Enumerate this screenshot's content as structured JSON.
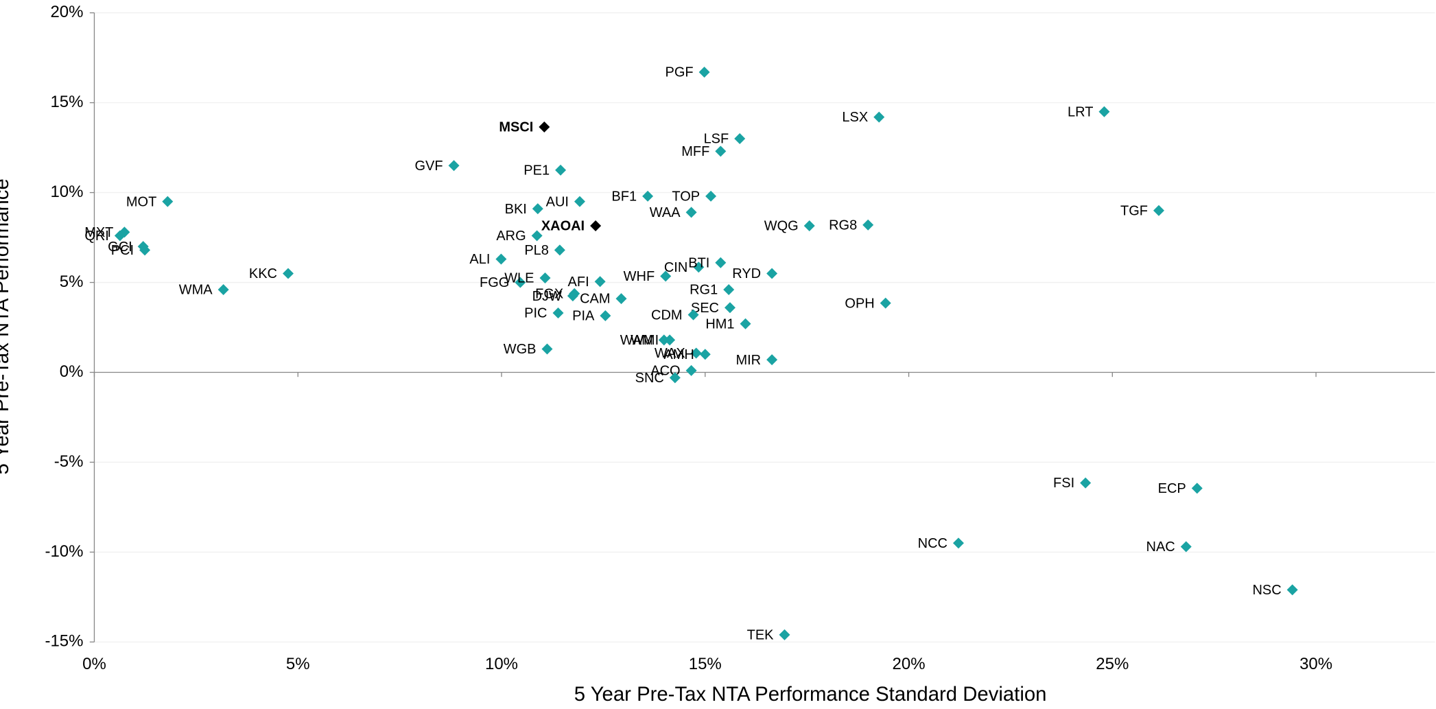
{
  "chart_data": {
    "type": "scatter",
    "x_label": "5 Year Pre-Tax NTA Performance Standard Deviation",
    "y_label": "5 Year Pre-Tax NTA Performance",
    "xlim": [
      0,
      33
    ],
    "ylim": [
      -15,
      20
    ],
    "xticks": [
      {
        "value": 0,
        "label": "0%"
      },
      {
        "value": 5,
        "label": "5%"
      },
      {
        "value": 10,
        "label": "10%"
      },
      {
        "value": 15,
        "label": "15%"
      },
      {
        "value": 20,
        "label": "20%"
      },
      {
        "value": 25,
        "label": "25%"
      },
      {
        "value": 30,
        "label": "30%"
      }
    ],
    "yticks": [
      {
        "value": -15,
        "label": "-15%"
      },
      {
        "value": -10,
        "label": "-10%"
      },
      {
        "value": -5,
        "label": "-5%"
      },
      {
        "value": 0,
        "label": "0%"
      },
      {
        "value": 5,
        "label": "5%"
      },
      {
        "value": 10,
        "label": "10%"
      },
      {
        "value": 15,
        "label": "15%"
      },
      {
        "value": 20,
        "label": "20%"
      }
    ],
    "grid": true,
    "color": "#1aa3a3",
    "index_color": "#000000",
    "points": [
      {
        "label": "PGF",
        "x": 14.98,
        "y": 16.7
      },
      {
        "label": "LSX",
        "x": 19.27,
        "y": 14.2
      },
      {
        "label": "LRT",
        "x": 24.8,
        "y": 14.5
      },
      {
        "label": "LSF",
        "x": 15.85,
        "y": 13.0
      },
      {
        "label": "MFF",
        "x": 15.38,
        "y": 12.3
      },
      {
        "label": "GVF",
        "x": 8.83,
        "y": 11.5
      },
      {
        "label": "PE1",
        "x": 11.45,
        "y": 11.25
      },
      {
        "label": "MOT",
        "x": 1.8,
        "y": 9.5
      },
      {
        "label": "BKI",
        "x": 10.89,
        "y": 9.1
      },
      {
        "label": "AUI",
        "x": 11.92,
        "y": 9.5
      },
      {
        "label": "BF1",
        "x": 13.59,
        "y": 9.8
      },
      {
        "label": "TOP",
        "x": 15.14,
        "y": 9.8
      },
      {
        "label": "WAA",
        "x": 14.66,
        "y": 8.9
      },
      {
        "label": "TGF",
        "x": 26.14,
        "y": 9.0
      },
      {
        "label": "WQG",
        "x": 17.56,
        "y": 8.15
      },
      {
        "label": "RG8",
        "x": 19.0,
        "y": 8.2
      },
      {
        "label": "QRI",
        "x": 0.63,
        "y": 7.6
      },
      {
        "label": "MXT",
        "x": 0.74,
        "y": 7.8
      },
      {
        "label": "GCI",
        "x": 1.2,
        "y": 7.0
      },
      {
        "label": "PCI",
        "x": 1.24,
        "y": 6.8
      },
      {
        "label": "ARG",
        "x": 10.87,
        "y": 7.6
      },
      {
        "label": "PL8",
        "x": 11.43,
        "y": 6.8
      },
      {
        "label": "ALI",
        "x": 9.99,
        "y": 6.3
      },
      {
        "label": "KKC",
        "x": 4.76,
        "y": 5.5
      },
      {
        "label": "CIN",
        "x": 14.84,
        "y": 5.85
      },
      {
        "label": "BTI",
        "x": 15.38,
        "y": 6.1
      },
      {
        "label": "WHF",
        "x": 14.03,
        "y": 5.35
      },
      {
        "label": "RYD",
        "x": 16.64,
        "y": 5.5
      },
      {
        "label": "FGG",
        "x": 10.46,
        "y": 5.0
      },
      {
        "label": "WLE",
        "x": 11.07,
        "y": 5.25
      },
      {
        "label": "AFI",
        "x": 12.42,
        "y": 5.05
      },
      {
        "label": "WMA",
        "x": 3.17,
        "y": 4.6
      },
      {
        "label": "RG1",
        "x": 15.58,
        "y": 4.6
      },
      {
        "label": "FGX",
        "x": 11.79,
        "y": 4.38
      },
      {
        "label": "DJW",
        "x": 11.75,
        "y": 4.25
      },
      {
        "label": "CAM",
        "x": 12.94,
        "y": 4.1
      },
      {
        "label": "PIA",
        "x": 12.55,
        "y": 3.15
      },
      {
        "label": "SEC",
        "x": 15.61,
        "y": 3.6
      },
      {
        "label": "OPH",
        "x": 19.43,
        "y": 3.85
      },
      {
        "label": "PIC",
        "x": 11.39,
        "y": 3.3
      },
      {
        "label": "CDM",
        "x": 14.71,
        "y": 3.2
      },
      {
        "label": "HM1",
        "x": 15.99,
        "y": 2.7
      },
      {
        "label": "WGB",
        "x": 11.12,
        "y": 1.3
      },
      {
        "label": "WAM",
        "x": 13.99,
        "y": 1.8
      },
      {
        "label": "WMI",
        "x": 14.13,
        "y": 1.8
      },
      {
        "label": "WAX",
        "x": 14.78,
        "y": 1.07
      },
      {
        "label": "AMH",
        "x": 15.0,
        "y": 1.0
      },
      {
        "label": "MIR",
        "x": 16.64,
        "y": 0.7
      },
      {
        "label": "ACQ",
        "x": 14.66,
        "y": 0.1
      },
      {
        "label": "SNC",
        "x": 14.26,
        "y": -0.3
      },
      {
        "label": "FSI",
        "x": 24.34,
        "y": -6.15
      },
      {
        "label": "ECP",
        "x": 27.08,
        "y": -6.45
      },
      {
        "label": "NCC",
        "x": 21.22,
        "y": -9.5
      },
      {
        "label": "NAC",
        "x": 26.81,
        "y": -9.7
      },
      {
        "label": "NSC",
        "x": 29.42,
        "y": -12.1
      },
      {
        "label": "TEK",
        "x": 16.95,
        "y": -14.6
      }
    ],
    "index_points": [
      {
        "label": "MSCI",
        "x": 11.05,
        "y": 13.65
      },
      {
        "label": "XAOAI",
        "x": 12.31,
        "y": 8.15
      }
    ]
  }
}
